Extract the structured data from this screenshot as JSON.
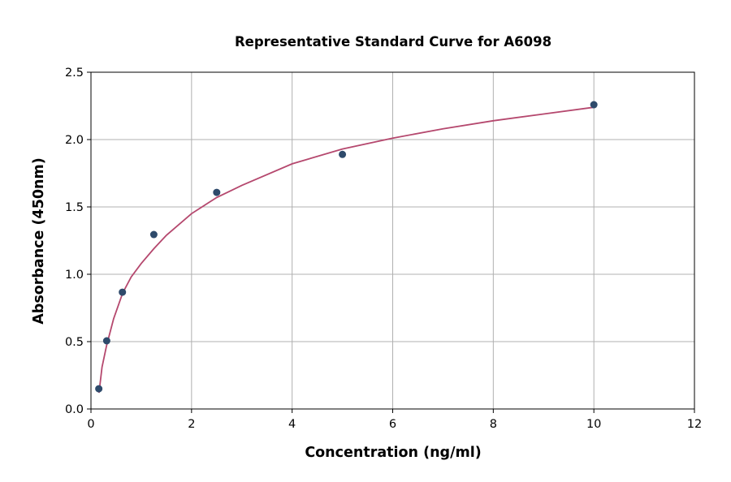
{
  "chart_data": {
    "type": "scatter",
    "title": "Representative Standard Curve for A6098",
    "xlabel": "Concentration (ng/ml)",
    "ylabel": "Absorbance (450nm)",
    "xlim": [
      0,
      12
    ],
    "ylim": [
      0,
      2.5
    ],
    "xticks": [
      "0",
      "2",
      "4",
      "6",
      "8",
      "10",
      "12"
    ],
    "yticks": [
      "0.0",
      "0.5",
      "1.0",
      "1.5",
      "2.0",
      "2.5"
    ],
    "grid": true,
    "points": {
      "x": [
        0.156,
        0.313,
        0.625,
        1.25,
        2.5,
        5,
        10
      ],
      "y": [
        0.15,
        0.506,
        0.867,
        1.295,
        1.608,
        1.89,
        2.259
      ],
      "color": "#2e4a6b"
    },
    "fit_curve": {
      "x": [
        0.16,
        0.22,
        0.31,
        0.45,
        0.63,
        0.8,
        1.0,
        1.25,
        1.5,
        2.0,
        2.5,
        3.0,
        4.0,
        5.0,
        6.0,
        7.0,
        8.0,
        9.0,
        10.0
      ],
      "y": [
        0.12,
        0.31,
        0.47,
        0.67,
        0.86,
        0.98,
        1.08,
        1.19,
        1.29,
        1.45,
        1.57,
        1.66,
        1.82,
        1.93,
        2.01,
        2.08,
        2.14,
        2.19,
        2.24
      ],
      "color": "#b5486e"
    }
  }
}
